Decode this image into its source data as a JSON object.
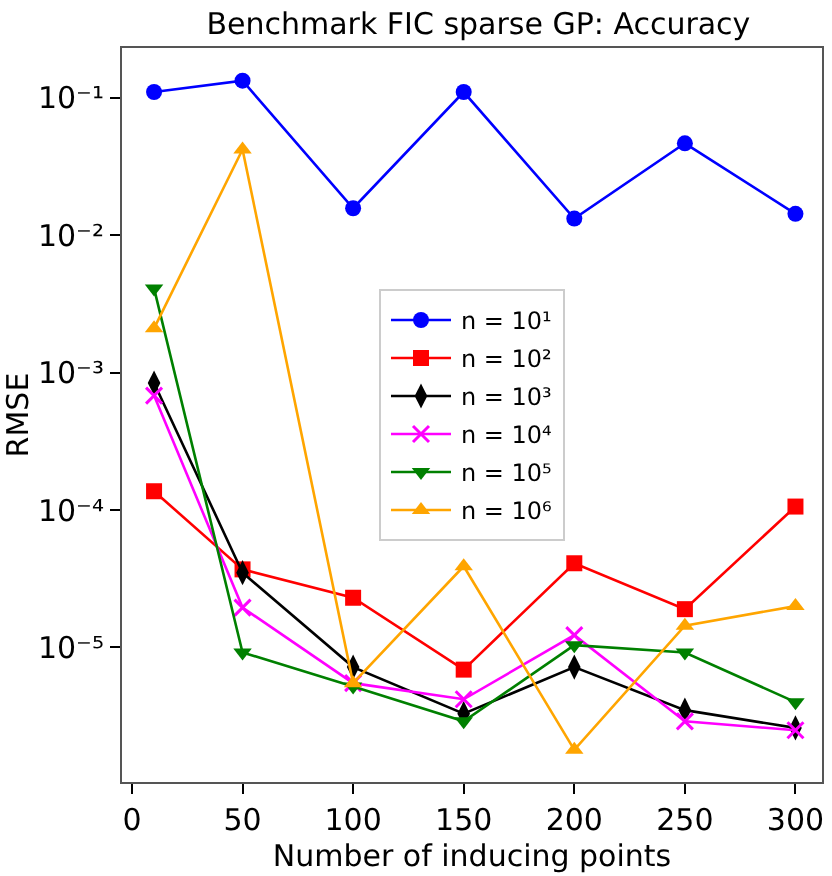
{
  "chart_data": {
    "type": "line",
    "title": "Benchmark FIC sparse GP: Accuracy",
    "xlabel": "Number of inducing points",
    "ylabel": "RMSE",
    "x": [
      10,
      50,
      100,
      150,
      200,
      250,
      300
    ],
    "series": [
      {
        "name": "n = 10¹",
        "color": "#0000ff",
        "marker": "circle",
        "values": [
          0.11,
          0.133,
          0.0157,
          0.11,
          0.0132,
          0.0466,
          0.0143
        ]
      },
      {
        "name": "n = 10²",
        "color": "#ff0000",
        "marker": "square",
        "values": [
          0.000137,
          3.7e-05,
          2.3e-05,
          6.9e-06,
          4.1e-05,
          1.9e-05,
          0.000106
        ]
      },
      {
        "name": "n = 10³",
        "color": "#000000",
        "marker": "diamond",
        "values": [
          0.00084,
          3.5e-05,
          7.2e-06,
          3.3e-06,
          7.2e-06,
          3.5e-06,
          2.6e-06
        ]
      },
      {
        "name": "n = 10⁴",
        "color": "#ff00ff",
        "marker": "cross",
        "values": [
          0.00068,
          1.95e-05,
          5.5e-06,
          4.2e-06,
          1.23e-05,
          2.9e-06,
          2.5e-06
        ]
      },
      {
        "name": "n = 10⁵",
        "color": "#008000",
        "marker": "triangle-down",
        "values": [
          0.0041,
          9.2e-06,
          5.2e-06,
          2.9e-06,
          1.04e-05,
          9.2e-06,
          4e-06
        ]
      },
      {
        "name": "n = 10⁶",
        "color": "#ffa500",
        "marker": "triangle",
        "values": [
          0.0021,
          0.042,
          5.5e-06,
          3.9e-05,
          1.8e-06,
          1.44e-05,
          2e-05
        ]
      }
    ],
    "log": "y",
    "xlim": [
      -4.5,
      312
    ],
    "xticks": [
      0,
      50,
      100,
      150,
      200,
      250,
      300
    ],
    "ylim": [
      1.05e-06,
      0.23
    ],
    "yticks": [
      {
        "value": 1e-05,
        "label": "10⁻⁵"
      },
      {
        "value": 0.0001,
        "label": "10⁻⁴"
      },
      {
        "value": 0.001,
        "label": "10⁻³"
      },
      {
        "value": 0.01,
        "label": "10⁻²"
      },
      {
        "value": 0.1,
        "label": "10⁻¹"
      }
    ],
    "legend": "center",
    "line_style": "solid"
  }
}
